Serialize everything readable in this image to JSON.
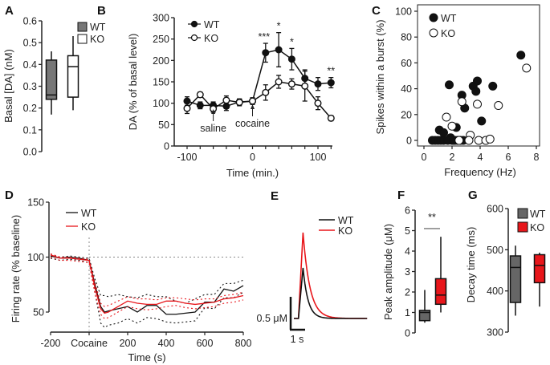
{
  "chart_data": [
    {
      "panel": "A",
      "type": "box",
      "ylabel": "Basal [DA] (nM)",
      "ylim": [
        0,
        0.6
      ],
      "yticks": [
        "0.0",
        "0.1",
        "0.2",
        "0.3",
        "0.4",
        "0.5",
        "0.6"
      ],
      "legend": [
        {
          "name": "WT",
          "color": "#777777"
        },
        {
          "name": "KO",
          "color": "#ffffff"
        }
      ],
      "legend_position": "top-right",
      "boxes": [
        {
          "name": "WT",
          "color": "#777777",
          "min": 0.17,
          "q1": 0.24,
          "median": 0.26,
          "q3": 0.42,
          "max": 0.46
        },
        {
          "name": "KO",
          "color": "#ffffff",
          "min": 0.19,
          "q1": 0.25,
          "median": 0.39,
          "q3": 0.44,
          "max": 0.53
        }
      ]
    },
    {
      "panel": "B",
      "type": "line",
      "xlabel": "Time (min.)",
      "ylabel": "DA (% of basal level)",
      "xlim": [
        -110,
        125
      ],
      "ylim": [
        0,
        300
      ],
      "xticks": [
        "-100",
        "0",
        "100"
      ],
      "yticks": [
        "0",
        "50",
        "100",
        "150",
        "200",
        "250",
        "300"
      ],
      "legend_position": "top-left",
      "annotations": [
        {
          "text": "saline",
          "x": -60
        },
        {
          "text": "cocaine",
          "x": 0
        },
        {
          "text": "***",
          "x": 20
        },
        {
          "text": "*",
          "x": 40
        },
        {
          "text": "*",
          "x": 60
        },
        {
          "text": "**",
          "x": 120
        }
      ],
      "x": [
        -100,
        -80,
        -60,
        -40,
        -20,
        0,
        20,
        40,
        60,
        80,
        100,
        120
      ],
      "series": [
        {
          "name": "WT",
          "marker": "filled-circle",
          "values": [
            105,
            95,
            95,
            93,
            103,
            105,
            218,
            225,
            203,
            158,
            145,
            148
          ],
          "errors": [
            10,
            8,
            8,
            10,
            7,
            6,
            22,
            40,
            25,
            20,
            15,
            12
          ]
        },
        {
          "name": "KO",
          "marker": "open-circle",
          "values": [
            88,
            120,
            87,
            107,
            102,
            105,
            125,
            150,
            145,
            140,
            100,
            65
          ],
          "errors": [
            12,
            6,
            8,
            10,
            8,
            8,
            18,
            15,
            12,
            35,
            15,
            6
          ]
        }
      ]
    },
    {
      "panel": "C",
      "type": "scatter",
      "xlabel": "Frequency (Hz)",
      "ylabel": "Spikes within a burst (%)",
      "xlim": [
        -0.5,
        8.3
      ],
      "ylim": [
        -5,
        105
      ],
      "xticks": [
        "0",
        "2",
        "4",
        "6",
        "8"
      ],
      "yticks": [
        "0",
        "20",
        "40",
        "60",
        "80",
        "100"
      ],
      "legend_position": "top-left",
      "series": [
        {
          "name": "WT",
          "marker": "filled-circle",
          "points": [
            [
              0.6,
              0
            ],
            [
              0.8,
              0
            ],
            [
              1.0,
              0
            ],
            [
              1.2,
              0
            ],
            [
              1.4,
              0
            ],
            [
              1.1,
              8
            ],
            [
              1.4,
              6
            ],
            [
              1.8,
              43
            ],
            [
              1.9,
              2
            ],
            [
              2.0,
              0
            ],
            [
              2.2,
              0
            ],
            [
              2.4,
              0
            ],
            [
              2.6,
              0
            ],
            [
              2.8,
              0
            ],
            [
              2.3,
              10
            ],
            [
              2.7,
              35
            ],
            [
              2.9,
              25
            ],
            [
              3.5,
              42
            ],
            [
              3.7,
              38
            ],
            [
              3.8,
              46
            ],
            [
              4.1,
              15
            ],
            [
              4.9,
              42
            ],
            [
              6.9,
              66
            ],
            [
              1.7,
              0
            ],
            [
              2.1,
              0
            ]
          ]
        },
        {
          "name": "KO",
          "marker": "open-circle",
          "points": [
            [
              1.6,
              18
            ],
            [
              2.0,
              11
            ],
            [
              2.7,
              30
            ],
            [
              3.3,
              4
            ],
            [
              3.2,
              0
            ],
            [
              3.8,
              28
            ],
            [
              3.9,
              0
            ],
            [
              4.4,
              0
            ],
            [
              4.7,
              1
            ],
            [
              5.3,
              27
            ],
            [
              7.3,
              56
            ],
            [
              2.5,
              0
            ]
          ]
        }
      ]
    },
    {
      "panel": "D",
      "type": "line",
      "xlabel": "Time (s)",
      "ylabel": "Firing rate (% baseline)",
      "xlim": [
        -200,
        800
      ],
      "ylim": [
        35,
        150
      ],
      "xticks": [
        "-200",
        "Cocaine",
        "200",
        "400",
        "600",
        "800"
      ],
      "yticks": [
        "50",
        "100",
        "150"
      ],
      "reference_lines": {
        "horizontal": 100,
        "vertical": 0
      },
      "legend_position": "top-left",
      "x": [
        -200,
        -150,
        -100,
        -50,
        0,
        30,
        60,
        80,
        100,
        150,
        200,
        250,
        300,
        350,
        400,
        450,
        500,
        550,
        600,
        650,
        700,
        750,
        800
      ],
      "series": [
        {
          "name": "WT",
          "color": "#111111",
          "values": [
            101,
            99,
            100,
            99,
            97,
            75,
            55,
            50,
            51,
            53,
            55,
            50,
            56,
            56,
            48,
            48,
            49,
            50,
            59,
            59,
            71,
            69,
            74
          ],
          "sem_upper": [
            102,
            100,
            101,
            100,
            99,
            80,
            65,
            65,
            64,
            66,
            64,
            63,
            66,
            64,
            64,
            60,
            58,
            62,
            66,
            66,
            76,
            76,
            79
          ],
          "sem_lower": [
            99,
            97,
            98,
            97,
            95,
            68,
            40,
            36,
            38,
            40,
            44,
            40,
            45,
            44,
            41,
            40,
            41,
            42,
            54,
            53,
            63,
            63,
            68
          ]
        },
        {
          "name": "KO",
          "color": "#e8161b",
          "values": [
            102,
            99,
            99,
            98,
            97,
            72,
            53,
            49,
            50,
            55,
            60,
            58,
            57,
            57,
            60,
            60,
            58,
            57,
            58,
            59,
            62,
            63,
            65
          ],
          "sem_upper": [
            103,
            100,
            100,
            99,
            98,
            77,
            58,
            55,
            56,
            60,
            64,
            62,
            62,
            61,
            63,
            63,
            62,
            61,
            62,
            62,
            65,
            66,
            68
          ],
          "sem_lower": [
            100,
            97,
            97,
            96,
            95,
            67,
            48,
            44,
            45,
            50,
            55,
            53,
            52,
            53,
            55,
            56,
            54,
            53,
            54,
            55,
            58,
            59,
            61
          ]
        }
      ]
    },
    {
      "panel": "E",
      "type": "line",
      "legend_position": "top-right",
      "scale_bar": {
        "y_label": "0.5 μM",
        "x_label": "1 s"
      },
      "series": [
        {
          "name": "WT",
          "color": "#111111",
          "peak_uM": 2.0
        },
        {
          "name": "KO",
          "color": "#e8161b",
          "peak_uM": 3.4
        }
      ]
    },
    {
      "panel": "F",
      "type": "box",
      "ylabel": "Peak amplitude (μM)",
      "ylim": [
        0,
        6
      ],
      "yticks": [
        "0",
        "1",
        "2",
        "3",
        "4",
        "5",
        "6"
      ],
      "annotations": [
        {
          "text": "**",
          "y": 5.1
        }
      ],
      "boxes": [
        {
          "name": "WT",
          "color": "#666666",
          "min": 0.5,
          "q1": 0.6,
          "median": 1.0,
          "q3": 1.1,
          "max": 2.1
        },
        {
          "name": "KO",
          "color": "#e8161b",
          "min": 1.0,
          "q1": 1.4,
          "median": 1.85,
          "q3": 2.65,
          "max": 4.7
        }
      ]
    },
    {
      "panel": "G",
      "type": "box",
      "ylabel": "Decay time (ms)",
      "ylim": [
        300,
        600
      ],
      "yticks": [
        "300",
        "400",
        "500",
        "600"
      ],
      "legend": [
        {
          "name": "WT",
          "color": "#666666"
        },
        {
          "name": "KO",
          "color": "#e8161b"
        }
      ],
      "legend_position": "top-right",
      "boxes": [
        {
          "name": "WT",
          "color": "#666666",
          "min": 340,
          "q1": 372,
          "median": 457,
          "q3": 485,
          "max": 510
        },
        {
          "name": "KO",
          "color": "#e8161b",
          "min": 362,
          "q1": 420,
          "median": 462,
          "q3": 488,
          "max": 493
        }
      ]
    }
  ],
  "panel_labels": [
    "A",
    "B",
    "C",
    "D",
    "E",
    "F",
    "G"
  ]
}
